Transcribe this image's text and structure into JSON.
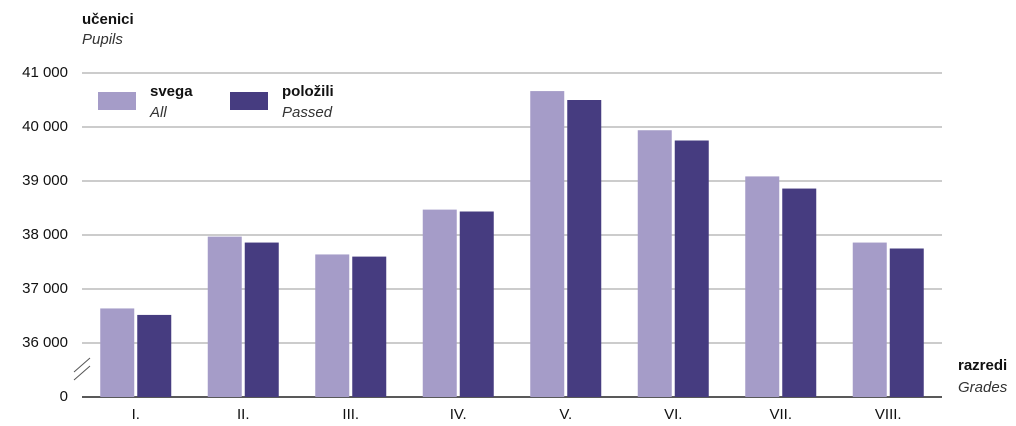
{
  "chart_data": {
    "type": "bar",
    "y_label": "učenici",
    "y_label_en": "Pupils",
    "x_label": "razredi",
    "x_label_en": "Grades",
    "categories": [
      "I.",
      "II.",
      "III.",
      "IV.",
      "V.",
      "VI.",
      "VII.",
      "VIII."
    ],
    "series": [
      {
        "name": "svega",
        "name_en": "All",
        "color": "#a59cc8",
        "values": [
          36640,
          37970,
          37640,
          38470,
          40665,
          39940,
          39085,
          37860
        ]
      },
      {
        "name": "položili",
        "name_en": "Passed",
        "color": "#463c80",
        "values": [
          36520,
          37860,
          37600,
          38435,
          40500,
          39750,
          38860,
          37750
        ]
      }
    ],
    "ylim": [
      0,
      41000
    ],
    "axis_break": true,
    "yticks": [
      0,
      {
        "value": 36000,
        "label": "36 000"
      },
      {
        "value": 37000,
        "label": "37 000"
      },
      {
        "value": 38000,
        "label": "38 000"
      },
      {
        "value": 39000,
        "label": "39 000"
      },
      {
        "value": 40000,
        "label": "40 000"
      },
      {
        "value": 41000,
        "label": "41 000"
      }
    ],
    "grid": true,
    "legend": "upper left"
  }
}
